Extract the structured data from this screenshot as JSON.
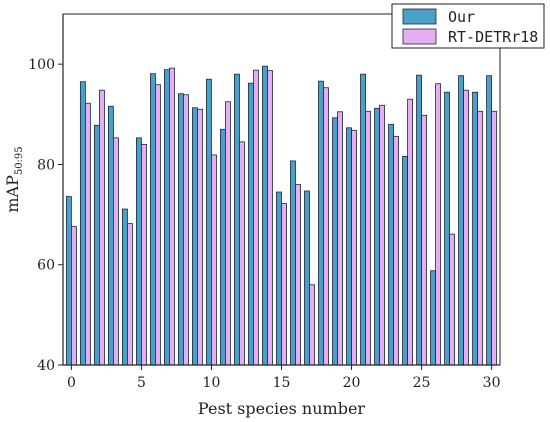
{
  "chart_data": {
    "type": "bar",
    "xlabel": "Pest species number",
    "ylabel": "mAP",
    "ylabel_sub": "50:95",
    "ylim": [
      40,
      110
    ],
    "xlim": [
      -0.6,
      30.6
    ],
    "yticks": [
      40,
      60,
      80,
      100
    ],
    "xticks": [
      0,
      5,
      10,
      15,
      20,
      25,
      30
    ],
    "legend_position": "top-right",
    "categories": [
      0,
      1,
      2,
      3,
      4,
      5,
      6,
      7,
      8,
      9,
      10,
      11,
      12,
      13,
      14,
      15,
      16,
      17,
      18,
      19,
      20,
      21,
      22,
      23,
      24,
      25,
      26,
      27,
      28,
      29,
      30
    ],
    "series": [
      {
        "name": "Our",
        "color": "#4aa0c8",
        "values": [
          73.6,
          96.5,
          87.8,
          91.6,
          71.1,
          85.3,
          98.1,
          98.9,
          94.1,
          91.3,
          97.0,
          87.0,
          98.0,
          96.2,
          99.6,
          74.5,
          80.7,
          74.7,
          96.6,
          89.3,
          87.3,
          98.0,
          91.2,
          88.0,
          81.6,
          97.8,
          58.8,
          94.4,
          97.7,
          94.4,
          97.7
        ]
      },
      {
        "name": "RT-DETRr18",
        "color": "#e6aef0",
        "values": [
          67.6,
          92.2,
          94.8,
          85.3,
          68.2,
          84.0,
          95.9,
          99.2,
          93.9,
          91.0,
          81.9,
          92.5,
          84.5,
          98.8,
          98.7,
          72.2,
          76.0,
          56.0,
          95.3,
          90.5,
          86.8,
          90.6,
          91.8,
          85.6,
          93.0,
          89.8,
          96.1,
          66.1,
          94.8,
          90.6,
          90.6
        ]
      }
    ]
  }
}
